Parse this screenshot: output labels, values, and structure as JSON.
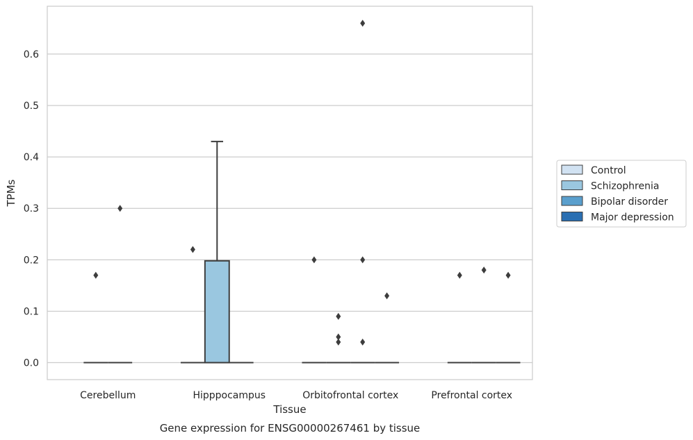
{
  "chart_data": {
    "type": "boxplot",
    "title": "Gene expression for ENSG00000267461 by tissue",
    "xlabel": "Tissue",
    "ylabel": "TPMs",
    "ylim": [
      -0.033,
      0.693
    ],
    "yticks": [
      "0.0",
      "0.1",
      "0.2",
      "0.3",
      "0.4",
      "0.5",
      "0.6"
    ],
    "grid": true,
    "legend_position": "right",
    "categories": [
      "Cerebellum",
      "Hipppocampus",
      "Orbitofrontal cortex",
      "Prefrontal cortex"
    ],
    "series": [
      {
        "name": "Control",
        "color": "#d1e2f2"
      },
      {
        "name": "Schizophrenia",
        "color": "#9ac7e0"
      },
      {
        "name": "Bipolar disorder",
        "color": "#5a9fcd"
      },
      {
        "name": "Major depression",
        "color": "#2a6fb2"
      }
    ],
    "boxes": [
      {
        "category": "Cerebellum",
        "series": "Schizophrenia",
        "q1": 0,
        "median": 0,
        "q3": 0,
        "whisker_low": 0,
        "whisker_high": 0,
        "outliers": [
          0.17
        ]
      },
      {
        "category": "Cerebellum",
        "series": "Bipolar disorder",
        "q1": 0,
        "median": 0,
        "q3": 0,
        "whisker_low": 0,
        "whisker_high": 0,
        "outliers": [
          0.3
        ]
      },
      {
        "category": "Hipppocampus",
        "series": "Control",
        "q1": 0,
        "median": 0,
        "q3": 0,
        "whisker_low": 0,
        "whisker_high": 0,
        "outliers": [
          0.22
        ]
      },
      {
        "category": "Hipppocampus",
        "series": "Schizophrenia",
        "q1": 0,
        "median": 0,
        "q3": 0.198,
        "whisker_low": 0,
        "whisker_high": 0.43,
        "outliers": []
      },
      {
        "category": "Hipppocampus",
        "series": "Bipolar disorder",
        "q1": 0,
        "median": 0,
        "q3": 0,
        "whisker_low": 0,
        "whisker_high": 0,
        "outliers": []
      },
      {
        "category": "Orbitofrontal cortex",
        "series": "Control",
        "q1": 0,
        "median": 0,
        "q3": 0,
        "whisker_low": 0,
        "whisker_high": 0,
        "outliers": [
          0.2
        ]
      },
      {
        "category": "Orbitofrontal cortex",
        "series": "Schizophrenia",
        "q1": 0,
        "median": 0,
        "q3": 0,
        "whisker_low": 0,
        "whisker_high": 0,
        "outliers": [
          0.09,
          0.05,
          0.04
        ]
      },
      {
        "category": "Orbitofrontal cortex",
        "series": "Bipolar disorder",
        "q1": 0,
        "median": 0,
        "q3": 0,
        "whisker_low": 0,
        "whisker_high": 0,
        "outliers": [
          0.66,
          0.2,
          0.04
        ]
      },
      {
        "category": "Orbitofrontal cortex",
        "series": "Major depression",
        "q1": 0,
        "median": 0,
        "q3": 0,
        "whisker_low": 0,
        "whisker_high": 0,
        "outliers": [
          0.13
        ]
      },
      {
        "category": "Prefrontal cortex",
        "series": "Schizophrenia",
        "q1": 0,
        "median": 0,
        "q3": 0,
        "whisker_low": 0,
        "whisker_high": 0,
        "outliers": [
          0.17
        ]
      },
      {
        "category": "Prefrontal cortex",
        "series": "Bipolar disorder",
        "q1": 0,
        "median": 0,
        "q3": 0,
        "whisker_low": 0,
        "whisker_high": 0,
        "outliers": [
          0.18
        ]
      },
      {
        "category": "Prefrontal cortex",
        "series": "Major depression",
        "q1": 0,
        "median": 0,
        "q3": 0,
        "whisker_low": 0,
        "whisker_high": 0,
        "outliers": [
          0.17
        ]
      }
    ]
  }
}
